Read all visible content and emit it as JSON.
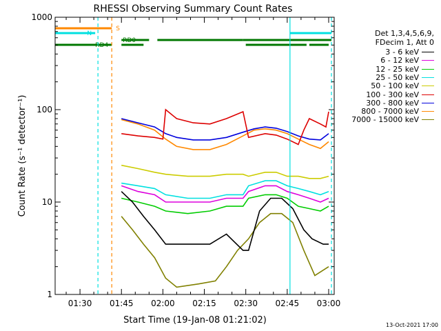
{
  "chart_data": {
    "type": "line",
    "title": "RHESSI Observing Summary Count Rates",
    "xlabel": "Start Time (19-Jan-08 01:21:02)",
    "ylabel": "Count Rate (s⁻¹ detector⁻¹)",
    "y_scale": "log",
    "ylim": [
      1,
      1000
    ],
    "y_ticks": [
      1,
      10,
      100,
      1000
    ],
    "y_tick_labels": [
      "1",
      "10",
      "100",
      "1000"
    ],
    "xlim_minutes_from_0121": [
      0,
      101
    ],
    "x_ticks": [
      {
        "t": 9,
        "label": "01:30"
      },
      {
        "t": 24,
        "label": "01:45"
      },
      {
        "t": 39,
        "label": "02:00"
      },
      {
        "t": 54,
        "label": "02:15"
      },
      {
        "t": 69,
        "label": "02:30"
      },
      {
        "t": 84,
        "label": "02:45"
      },
      {
        "t": 99,
        "label": "03:00"
      }
    ],
    "legend_header": [
      "Det 1,3,4,5,6,9,",
      "FDecim 1, Att 0"
    ],
    "legend_placement": "right",
    "series": [
      {
        "name": "3 - 6 keV",
        "color": "#000000",
        "points": [
          [
            24,
            13
          ],
          [
            28,
            10
          ],
          [
            32,
            7
          ],
          [
            36,
            5
          ],
          [
            40,
            3.5
          ],
          [
            48,
            3.5
          ],
          [
            56,
            3.5
          ],
          [
            62,
            4.5
          ],
          [
            68,
            3
          ],
          [
            70,
            3
          ],
          [
            74,
            8
          ],
          [
            78,
            11
          ],
          [
            82,
            11
          ],
          [
            86,
            8.5
          ],
          [
            90,
            5
          ],
          [
            93,
            4
          ],
          [
            97,
            3.5
          ],
          [
            99,
            3.5
          ]
        ]
      },
      {
        "name": "6 - 12 keV",
        "color": "#dd00dd",
        "points": [
          [
            24,
            15
          ],
          [
            30,
            13
          ],
          [
            36,
            12
          ],
          [
            40,
            10
          ],
          [
            48,
            10
          ],
          [
            56,
            10
          ],
          [
            62,
            11
          ],
          [
            68,
            11
          ],
          [
            70,
            13
          ],
          [
            76,
            15
          ],
          [
            80,
            15
          ],
          [
            84,
            13
          ],
          [
            88,
            12
          ],
          [
            92,
            11
          ],
          [
            96,
            10
          ],
          [
            99,
            11
          ]
        ]
      },
      {
        "name": "12 - 25 keV",
        "color": "#00cc00",
        "points": [
          [
            24,
            11
          ],
          [
            30,
            10
          ],
          [
            36,
            9
          ],
          [
            40,
            8
          ],
          [
            48,
            7.5
          ],
          [
            56,
            8
          ],
          [
            62,
            9
          ],
          [
            68,
            9
          ],
          [
            70,
            11
          ],
          [
            76,
            12
          ],
          [
            80,
            12
          ],
          [
            84,
            11
          ],
          [
            88,
            9
          ],
          [
            92,
            8.5
          ],
          [
            96,
            8
          ],
          [
            99,
            9
          ]
        ]
      },
      {
        "name": "25 - 50 keV",
        "color": "#00e0e0",
        "points": [
          [
            24,
            16
          ],
          [
            30,
            15
          ],
          [
            36,
            14
          ],
          [
            40,
            12
          ],
          [
            48,
            11
          ],
          [
            56,
            11
          ],
          [
            62,
            12
          ],
          [
            68,
            12
          ],
          [
            70,
            15
          ],
          [
            76,
            17
          ],
          [
            80,
            17
          ],
          [
            84,
            15
          ],
          [
            88,
            14
          ],
          [
            92,
            13
          ],
          [
            96,
            12
          ],
          [
            99,
            13
          ]
        ]
      },
      {
        "name": "50 - 100 keV",
        "color": "#cccc00",
        "points": [
          [
            24,
            25
          ],
          [
            30,
            23
          ],
          [
            36,
            21
          ],
          [
            40,
            20
          ],
          [
            48,
            19
          ],
          [
            56,
            19
          ],
          [
            62,
            20
          ],
          [
            68,
            20
          ],
          [
            70,
            19
          ],
          [
            76,
            21
          ],
          [
            80,
            21
          ],
          [
            84,
            19
          ],
          [
            88,
            19
          ],
          [
            92,
            18
          ],
          [
            96,
            18
          ],
          [
            99,
            19
          ]
        ]
      },
      {
        "name": "100 - 300 keV",
        "color": "#dd0000",
        "points": [
          [
            24,
            55
          ],
          [
            30,
            52
          ],
          [
            36,
            50
          ],
          [
            39,
            48
          ],
          [
            40,
            100
          ],
          [
            44,
            80
          ],
          [
            50,
            72
          ],
          [
            56,
            70
          ],
          [
            62,
            80
          ],
          [
            68,
            95
          ],
          [
            70,
            50
          ],
          [
            76,
            55
          ],
          [
            80,
            53
          ],
          [
            84,
            48
          ],
          [
            88,
            42
          ],
          [
            90,
            60
          ],
          [
            92,
            80
          ],
          [
            96,
            70
          ],
          [
            98,
            65
          ],
          [
            99,
            95
          ]
        ]
      },
      {
        "name": "300 - 800 keV",
        "color": "#0000dd",
        "points": [
          [
            24,
            80
          ],
          [
            30,
            72
          ],
          [
            36,
            65
          ],
          [
            40,
            55
          ],
          [
            44,
            50
          ],
          [
            50,
            47
          ],
          [
            56,
            47
          ],
          [
            62,
            50
          ],
          [
            68,
            57
          ],
          [
            72,
            62
          ],
          [
            76,
            65
          ],
          [
            80,
            63
          ],
          [
            84,
            58
          ],
          [
            88,
            52
          ],
          [
            92,
            48
          ],
          [
            96,
            47
          ],
          [
            99,
            55
          ]
        ]
      },
      {
        "name": "800 - 7000 keV",
        "color": "#ff8800",
        "points": [
          [
            24,
            78
          ],
          [
            30,
            70
          ],
          [
            36,
            60
          ],
          [
            40,
            48
          ],
          [
            44,
            40
          ],
          [
            50,
            37
          ],
          [
            56,
            37
          ],
          [
            62,
            42
          ],
          [
            68,
            52
          ],
          [
            72,
            60
          ],
          [
            76,
            62
          ],
          [
            80,
            60
          ],
          [
            84,
            55
          ],
          [
            88,
            48
          ],
          [
            92,
            42
          ],
          [
            96,
            38
          ],
          [
            99,
            45
          ]
        ]
      },
      {
        "name": "7000 - 15000 keV",
        "color": "#808000",
        "points": [
          [
            24,
            7
          ],
          [
            28,
            5
          ],
          [
            32,
            3.5
          ],
          [
            36,
            2.5
          ],
          [
            40,
            1.5
          ],
          [
            44,
            1.2
          ],
          [
            52,
            1.3
          ],
          [
            58,
            1.4
          ],
          [
            62,
            2
          ],
          [
            66,
            3
          ],
          [
            70,
            4
          ],
          [
            74,
            6
          ],
          [
            78,
            7.5
          ],
          [
            82,
            7.5
          ],
          [
            86,
            6
          ],
          [
            90,
            3
          ],
          [
            94,
            1.6
          ],
          [
            99,
            2
          ]
        ]
      }
    ],
    "bars": [
      {
        "label": "S",
        "color": "#ff8800",
        "segments": [
          [
            0,
            20.5
          ]
        ]
      },
      {
        "label": "N",
        "color": "#00e0e0",
        "segments": [
          [
            0,
            14.5
          ],
          [
            85,
            100
          ]
        ]
      },
      {
        "label": "RD0",
        "color": "#007700",
        "segments": [
          [
            24,
            34
          ],
          [
            37,
            68
          ],
          [
            68,
            100
          ]
        ]
      },
      {
        "label": "RD4",
        "color": "#007700",
        "segments": [
          [
            0,
            20.5
          ],
          [
            24,
            32
          ],
          [
            69,
            91
          ],
          [
            92,
            99
          ]
        ]
      }
    ],
    "vlines": [
      {
        "t": 15.5,
        "color": "#00e0e0",
        "style": "dashed"
      },
      {
        "t": 20.5,
        "color": "#ff8800",
        "style": "dashed"
      },
      {
        "t": 85,
        "color": "#00e0e0",
        "style": "solid"
      },
      {
        "t": 100,
        "color": "#00e0e0",
        "style": "dashed"
      }
    ],
    "footer_stamp": "13-Oct-2021 17:00"
  }
}
